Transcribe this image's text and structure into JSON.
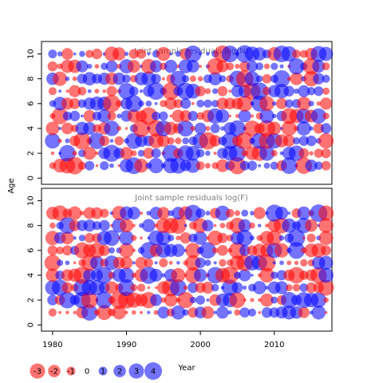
{
  "colors": {
    "positive": "#0000ff",
    "negative": "#ff0000",
    "frame": "#000000",
    "panel_title": "#7f7f7f"
  },
  "chart_data": [
    {
      "type": "scatter",
      "subtype": "bubble",
      "title": "Joint sample residuals log(N)",
      "ylabel": "Age",
      "xlabel": "",
      "xlim": [
        1978.5,
        2017.8
      ],
      "ylim": [
        -0.5,
        11
      ],
      "yticks": [
        0,
        2,
        4,
        6,
        8,
        10
      ],
      "x_years": [
        1980,
        2017
      ],
      "ages": [
        1,
        2,
        3,
        4,
        5,
        6,
        7,
        8,
        9,
        10
      ],
      "seed": 11
    },
    {
      "type": "scatter",
      "subtype": "bubble",
      "title": "Joint sample residuals log(F)",
      "ylabel": "",
      "xlabel": "Year",
      "xlim": [
        1978.5,
        2017.8
      ],
      "ylim": [
        -0.5,
        11
      ],
      "yticks": [
        0,
        2,
        4,
        6,
        8,
        10
      ],
      "xticks": [
        1980,
        1990,
        2000,
        2010
      ],
      "x_years": [
        1980,
        2017
      ],
      "ages": [
        1,
        2,
        3,
        4,
        5,
        6,
        7,
        8,
        9
      ],
      "seed": 23
    }
  ],
  "legend": {
    "values": [
      -3,
      -2,
      -1,
      0,
      1,
      2,
      3,
      4
    ],
    "labels": [
      "-3",
      "-2",
      "-1",
      "0",
      "1",
      "2",
      "3",
      "4"
    ]
  },
  "axis_labels": {
    "y": "Age",
    "x": "Year"
  }
}
